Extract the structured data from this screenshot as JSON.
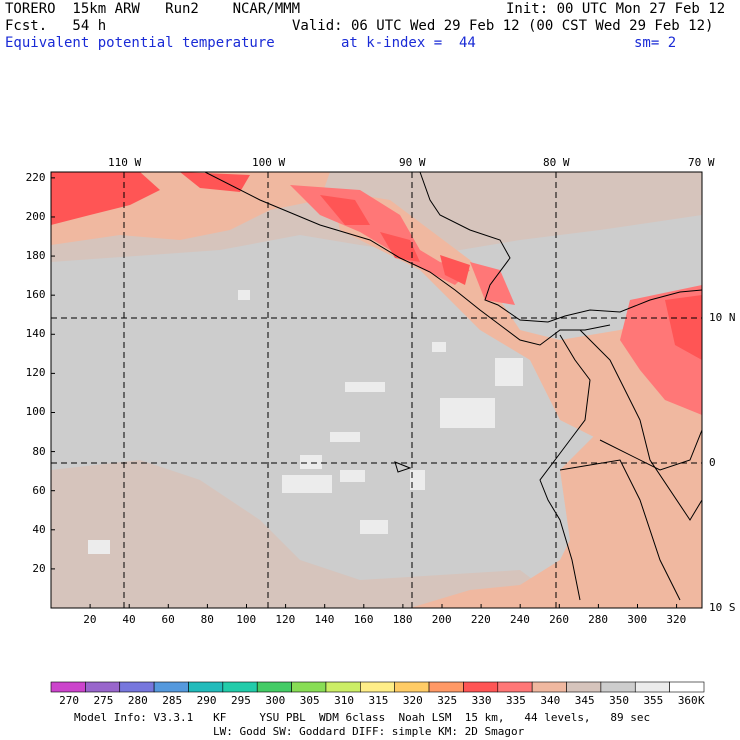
{
  "header": {
    "model": "TORERO  15km ARW   Run2    NCAR/MMM",
    "init": "Init: 00 UTC Mon 27 Feb 12",
    "fcst": "Fcst.   54 h",
    "valid": "Valid: 06 UTC Wed 29 Feb 12 (00 CST Wed 29 Feb 12)",
    "field": "Equivalent potential temperature",
    "level": "at k-index =  44",
    "smooth": "sm= 2"
  },
  "map": {
    "top_lon_labels": [
      "110 W",
      "100 W",
      "90 W",
      "80 W",
      "70 W"
    ],
    "right_lat_labels": [
      "10 N",
      "0",
      "10 S"
    ],
    "x_ticks": [
      "20",
      "40",
      "60",
      "80",
      "100",
      "120",
      "140",
      "160",
      "180",
      "200",
      "220",
      "240",
      "260",
      "280",
      "300",
      "320"
    ],
    "y_ticks": [
      "20",
      "40",
      "60",
      "80",
      "100",
      "120",
      "140",
      "160",
      "180",
      "200",
      "220"
    ]
  },
  "colorbar": {
    "labels": [
      "270",
      "275",
      "280",
      "285",
      "290",
      "295",
      "300",
      "305",
      "310",
      "315",
      "320",
      "325",
      "330",
      "335",
      "340",
      "345",
      "350",
      "355",
      "360"
    ],
    "unit": "K",
    "colors": [
      "#cc44cc",
      "#9966cc",
      "#7777dd",
      "#5599dd",
      "#22bbbb",
      "#22ccaa",
      "#44cc66",
      "#88dd55",
      "#ccee66",
      "#ffee88",
      "#ffcc66",
      "#ff9966",
      "#ff5555",
      "#ff7777",
      "#f0b8a0",
      "#d6c4bc",
      "#cdcdcd",
      "#ececec",
      "#ffffff"
    ]
  },
  "footer": {
    "line1": "Model Info: V3.3.1   KF     YSU PBL  WDM 6class  Noah LSM  15 km,   44 levels,   89 sec",
    "line2": "LW: Godd SW: Goddard DIFF: simple KM: 2D Smagor"
  }
}
